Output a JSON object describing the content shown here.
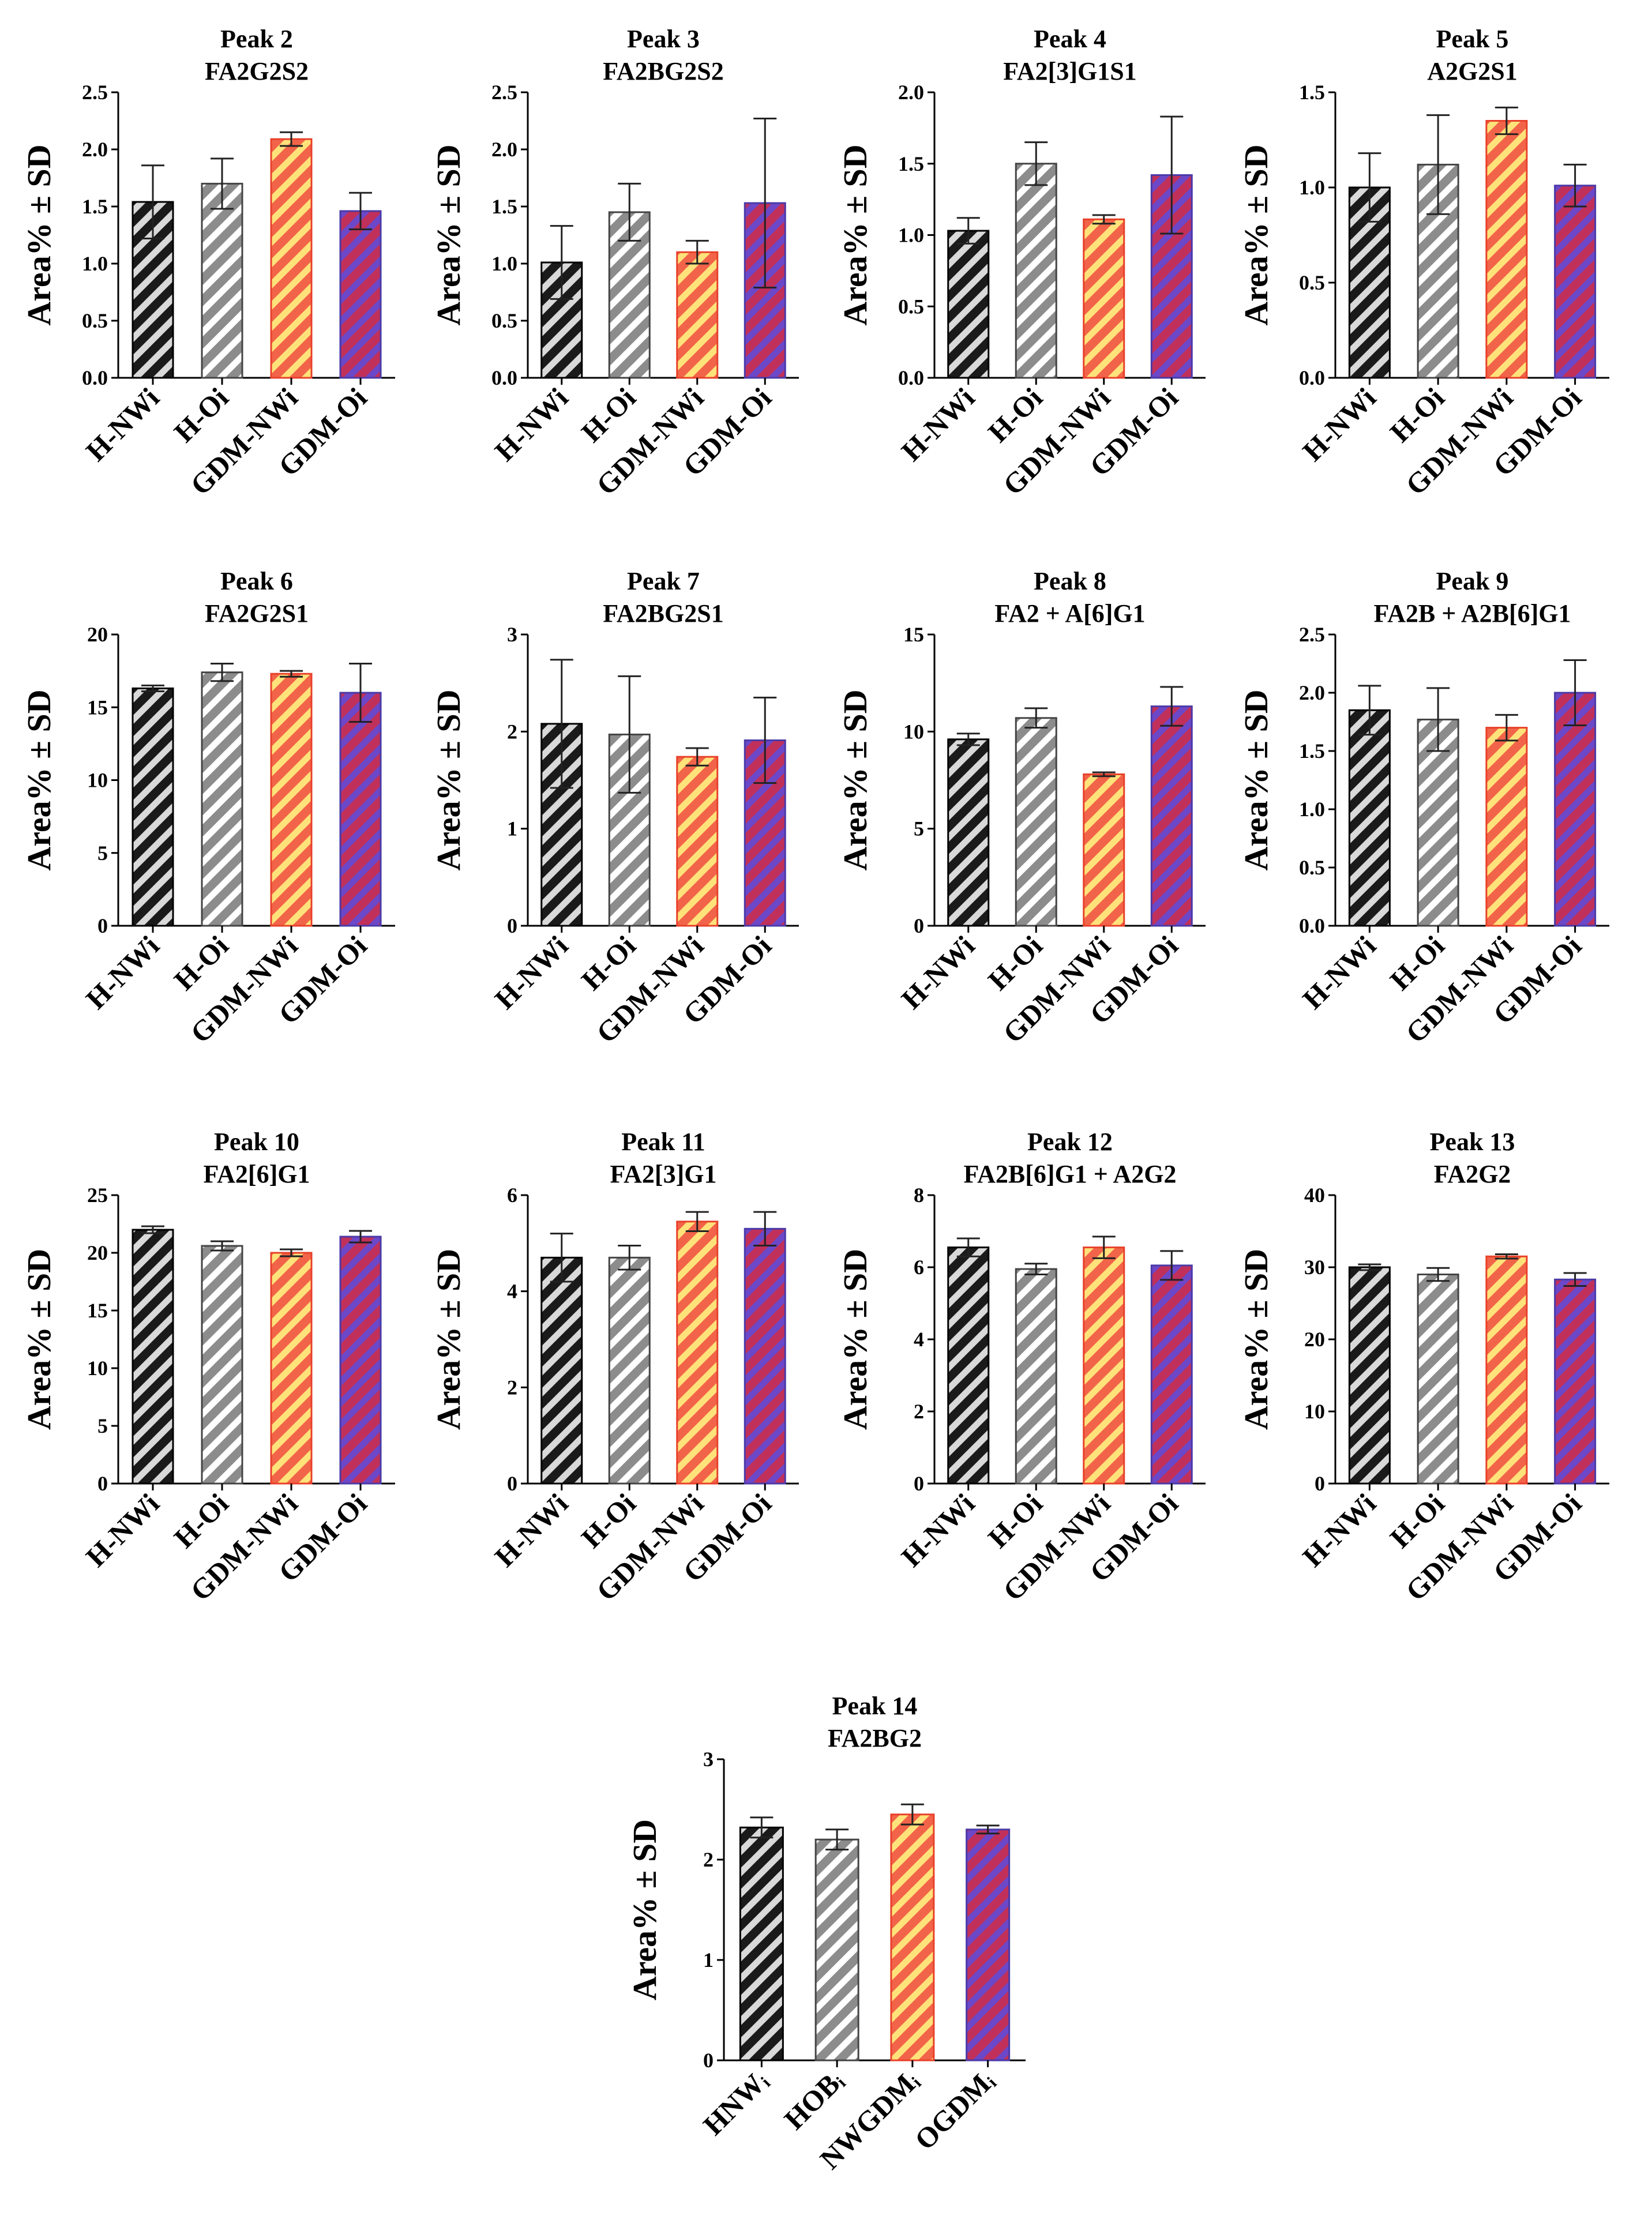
{
  "ylabel": "Area% ± SD",
  "categories": [
    "H-NWi",
    "H-Oi",
    "GDM-NWi",
    "GDM-Oi"
  ],
  "colors": {
    "H-NWi": {
      "fill": "#1a1a1a",
      "stripe": "#d9d9d9"
    },
    "H-Oi": {
      "fill": "#8c8c8c",
      "stripe": "#ffffff"
    },
    "GDM-NWi": {
      "fill": "#f26449",
      "stripe": "#ffe27a"
    },
    "GDM-Oi": {
      "fill": "#c0305a",
      "stripe": "#6c48c8"
    }
  },
  "chart_data": [
    {
      "type": "bar",
      "title": "Peak 2",
      "subtitle": "FA2G2S2",
      "ylabel": "Area% ± SD",
      "categories": [
        "H-NWi",
        "H-Oi",
        "GDM-NWi",
        "GDM-Oi"
      ],
      "values": [
        1.54,
        1.7,
        2.09,
        1.46
      ],
      "errors": [
        0.32,
        0.22,
        0.06,
        0.16
      ],
      "ylim": [
        0,
        2.5
      ],
      "yticks": [
        "0.0",
        "0.5",
        "1.0",
        "1.5",
        "2.0",
        "2.5"
      ]
    },
    {
      "type": "bar",
      "title": "Peak 3",
      "subtitle": "FA2BG2S2",
      "ylabel": "Area% ± SD",
      "categories": [
        "H-NWi",
        "H-Oi",
        "GDM-NWi",
        "GDM-Oi"
      ],
      "values": [
        1.01,
        1.45,
        1.1,
        1.53
      ],
      "errors": [
        0.32,
        0.25,
        0.1,
        0.74
      ],
      "ylim": [
        0,
        2.5
      ],
      "yticks": [
        "0.0",
        "0.5",
        "1.0",
        "1.5",
        "2.0",
        "2.5"
      ]
    },
    {
      "type": "bar",
      "title": "Peak 4",
      "subtitle": "FA2[3]G1S1",
      "ylabel": "Area% ± SD",
      "categories": [
        "H-NWi",
        "H-Oi",
        "GDM-NWi",
        "GDM-Oi"
      ],
      "values": [
        1.03,
        1.5,
        1.11,
        1.42
      ],
      "errors": [
        0.09,
        0.15,
        0.03,
        0.41
      ],
      "ylim": [
        0,
        2.0
      ],
      "yticks": [
        "0.0",
        "0.5",
        "1.0",
        "1.5",
        "2.0"
      ]
    },
    {
      "type": "bar",
      "title": "Peak 5",
      "subtitle": "A2G2S1",
      "ylabel": "Area% ± SD",
      "categories": [
        "H-NWi",
        "H-Oi",
        "GDM-NWi",
        "GDM-Oi"
      ],
      "values": [
        1.0,
        1.12,
        1.35,
        1.01
      ],
      "errors": [
        0.18,
        0.26,
        0.07,
        0.11
      ],
      "ylim": [
        0,
        1.5
      ],
      "yticks": [
        "0.0",
        "0.5",
        "1.0",
        "1.5"
      ]
    },
    {
      "type": "bar",
      "title": "Peak 6",
      "subtitle": "FA2G2S1",
      "ylabel": "Area% ± SD",
      "categories": [
        "H-NWi",
        "H-Oi",
        "GDM-NWi",
        "GDM-Oi"
      ],
      "values": [
        16.3,
        17.4,
        17.3,
        16.0
      ],
      "errors": [
        0.2,
        0.6,
        0.2,
        2.0
      ],
      "ylim": [
        0,
        20
      ],
      "yticks": [
        "0",
        "5",
        "10",
        "15",
        "20"
      ]
    },
    {
      "type": "bar",
      "title": "Peak 7",
      "subtitle": "FA2BG2S1",
      "ylabel": "Area% ± SD",
      "categories": [
        "H-NWi",
        "H-Oi",
        "GDM-NWi",
        "GDM-Oi"
      ],
      "values": [
        2.08,
        1.97,
        1.74,
        1.91
      ],
      "errors": [
        0.66,
        0.6,
        0.09,
        0.44
      ],
      "ylim": [
        0,
        3
      ],
      "yticks": [
        "0",
        "1",
        "2",
        "3"
      ]
    },
    {
      "type": "bar",
      "title": "Peak 8",
      "subtitle": "FA2 + A[6]G1",
      "ylabel": "Area% ± SD",
      "categories": [
        "H-NWi",
        "H-Oi",
        "GDM-NWi",
        "GDM-Oi"
      ],
      "values": [
        9.6,
        10.7,
        7.8,
        11.3
      ],
      "errors": [
        0.3,
        0.5,
        0.1,
        1.0
      ],
      "ylim": [
        0,
        15
      ],
      "yticks": [
        "0",
        "5",
        "10",
        "15"
      ]
    },
    {
      "type": "bar",
      "title": "Peak 9",
      "subtitle": "FA2B + A2B[6]G1",
      "ylabel": "Area% ± SD",
      "categories": [
        "H-NWi",
        "H-Oi",
        "GDM-NWi",
        "GDM-Oi"
      ],
      "values": [
        1.85,
        1.77,
        1.7,
        2.0
      ],
      "errors": [
        0.21,
        0.27,
        0.11,
        0.28
      ],
      "ylim": [
        0,
        2.5
      ],
      "yticks": [
        "0.0",
        "0.5",
        "1.0",
        "1.5",
        "2.0",
        "2.5"
      ]
    },
    {
      "type": "bar",
      "title": "Peak 10",
      "subtitle": "FA2[6]G1",
      "ylabel": "Area% ± SD",
      "categories": [
        "H-NWi",
        "H-Oi",
        "GDM-NWi",
        "GDM-Oi"
      ],
      "values": [
        22.0,
        20.6,
        20.0,
        21.4
      ],
      "errors": [
        0.3,
        0.4,
        0.3,
        0.5
      ],
      "ylim": [
        0,
        25
      ],
      "yticks": [
        "0",
        "5",
        "10",
        "15",
        "20",
        "25"
      ]
    },
    {
      "type": "bar",
      "title": "Peak 11",
      "subtitle": "FA2[3]G1",
      "ylabel": "Area% ± SD",
      "categories": [
        "H-NWi",
        "H-Oi",
        "GDM-NWi",
        "GDM-Oi"
      ],
      "values": [
        4.7,
        4.7,
        5.45,
        5.3
      ],
      "errors": [
        0.5,
        0.25,
        0.2,
        0.35
      ],
      "ylim": [
        0,
        6
      ],
      "yticks": [
        "0",
        "2",
        "4",
        "6"
      ]
    },
    {
      "type": "bar",
      "title": "Peak 12",
      "subtitle": "FA2B[6]G1 + A2G2",
      "ylabel": "Area% ± SD",
      "categories": [
        "H-NWi",
        "H-Oi",
        "GDM-NWi",
        "GDM-Oi"
      ],
      "values": [
        6.55,
        5.95,
        6.55,
        6.05
      ],
      "errors": [
        0.25,
        0.15,
        0.3,
        0.4
      ],
      "ylim": [
        0,
        8
      ],
      "yticks": [
        "0",
        "2",
        "4",
        "6",
        "8"
      ]
    },
    {
      "type": "bar",
      "title": "Peak 13",
      "subtitle": "FA2G2",
      "ylabel": "Area% ± SD",
      "categories": [
        "H-NWi",
        "H-Oi",
        "GDM-NWi",
        "GDM-Oi"
      ],
      "values": [
        30.0,
        29.0,
        31.5,
        28.3
      ],
      "errors": [
        0.4,
        0.9,
        0.3,
        0.9
      ],
      "ylim": [
        0,
        40
      ],
      "yticks": [
        "0",
        "10",
        "20",
        "30",
        "40"
      ]
    },
    {
      "type": "bar",
      "title": "Peak 14",
      "subtitle": "FA2BG2",
      "ylabel": "Area% ± SD",
      "categories": [
        "HNWᵢ",
        "HOBᵢ",
        "NWGDMᵢ",
        "OGDMᵢ"
      ],
      "values": [
        2.32,
        2.2,
        2.45,
        2.3
      ],
      "errors": [
        0.1,
        0.1,
        0.1,
        0.04
      ],
      "ylim": [
        0,
        3
      ],
      "yticks": [
        "0",
        "1",
        "2",
        "3"
      ]
    }
  ]
}
